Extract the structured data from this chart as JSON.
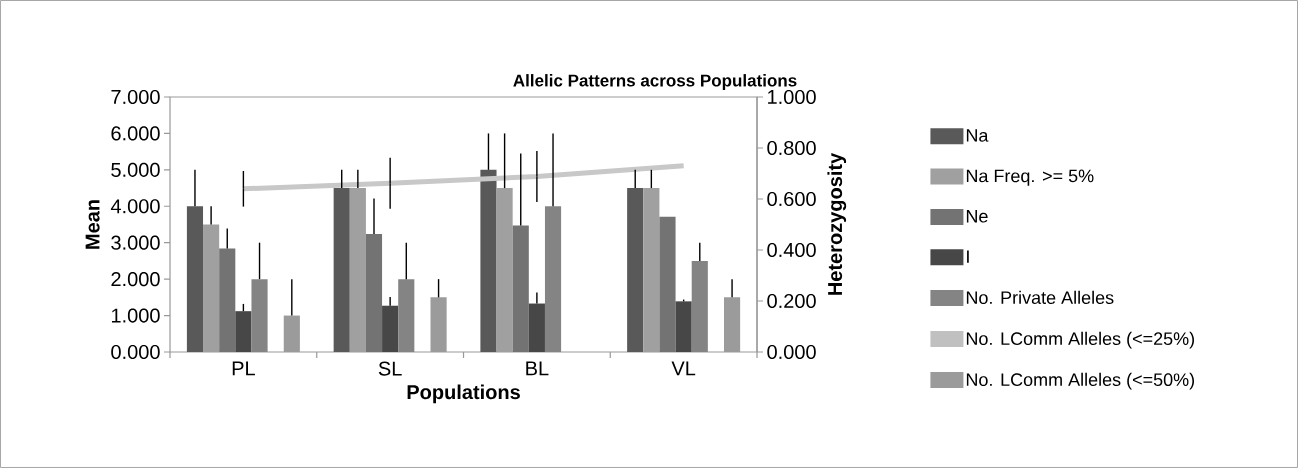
{
  "chart_data": {
    "type": "bar",
    "title": "Allelic Patterns across Populations",
    "xlabel": "Populations",
    "ylabel": "Mean",
    "y2label": "Heterozygosity",
    "categories": [
      "PL",
      "SL",
      "BL",
      "VL"
    ],
    "series": [
      {
        "name": "Na",
        "color": "#595959",
        "values": [
          4.0,
          4.5,
          5.0,
          4.5
        ],
        "errors": [
          [
            4.0,
            5.0
          ],
          [
            4.5,
            5.0
          ],
          [
            5.0,
            6.0
          ],
          [
            4.5,
            5.0
          ]
        ]
      },
      {
        "name": "Na Freq. >= 5%",
        "color": "#a0a0a0",
        "values": [
          3.5,
          4.5,
          4.5,
          4.5
        ],
        "errors": [
          [
            3.5,
            4.0
          ],
          [
            4.5,
            5.0
          ],
          [
            4.5,
            6.0
          ],
          [
            4.5,
            5.0
          ]
        ]
      },
      {
        "name": "Ne",
        "color": "#737373",
        "values": [
          2.84,
          3.24,
          3.47,
          3.71
        ],
        "errors": [
          [
            2.84,
            3.39
          ],
          [
            3.24,
            4.21
          ],
          [
            3.47,
            5.45
          ],
          null
        ]
      },
      {
        "name": "I",
        "color": "#474747",
        "values": [
          1.12,
          1.27,
          1.33,
          1.39
        ],
        "errors": [
          [
            1.12,
            1.32
          ],
          [
            1.27,
            1.51
          ],
          [
            1.33,
            1.63
          ],
          [
            1.39,
            1.44
          ]
        ]
      },
      {
        "name": "No. Private Alleles",
        "color": "#848484",
        "values": [
          2.0,
          2.0,
          4.0,
          2.5
        ],
        "errors": [
          [
            2.0,
            3.0
          ],
          [
            2.0,
            3.0
          ],
          [
            4.0,
            6.0
          ],
          [
            2.5,
            3.0
          ]
        ]
      },
      {
        "name": "No. LComm Alleles (<=25%)",
        "color": "#c0c0c0",
        "values": [
          null,
          null,
          null,
          null
        ]
      },
      {
        "name": "No. LComm Alleles (<=50%)",
        "color": "#9b9b9b",
        "values": [
          1.0,
          1.5,
          null,
          1.5
        ],
        "errors": [
          [
            1.0,
            2.0
          ],
          [
            1.5,
            2.0
          ],
          null,
          [
            1.5,
            2.0
          ]
        ]
      },
      {
        "type": "line",
        "axis": "y2",
        "color": "#c8c8c8",
        "values": [
          0.64,
          0.662,
          0.688,
          0.73
        ],
        "errors": [
          0.07,
          0.1,
          0.1,
          null
        ]
      }
    ],
    "ylim": [
      0,
      7
    ],
    "yticks": [
      {
        "value": 0,
        "label": "0.000"
      },
      {
        "value": 1,
        "label": "1.000"
      },
      {
        "value": 2,
        "label": "2.000"
      },
      {
        "value": 3,
        "label": "3.000"
      },
      {
        "value": 4,
        "label": "4.000"
      },
      {
        "value": 5,
        "label": "5.000"
      },
      {
        "value": 6,
        "label": "6.000"
      },
      {
        "value": 7,
        "label": "7.000"
      }
    ],
    "y2lim": [
      0,
      1
    ],
    "y2ticks": [
      {
        "value": 0,
        "label": "0.000"
      },
      {
        "value": 0.2,
        "label": "0.200"
      },
      {
        "value": 0.4,
        "label": "0.400"
      },
      {
        "value": 0.6,
        "label": "0.600"
      },
      {
        "value": 0.8,
        "label": "0.800"
      },
      {
        "value": 1,
        "label": "1.000"
      }
    ],
    "legend": "right"
  }
}
